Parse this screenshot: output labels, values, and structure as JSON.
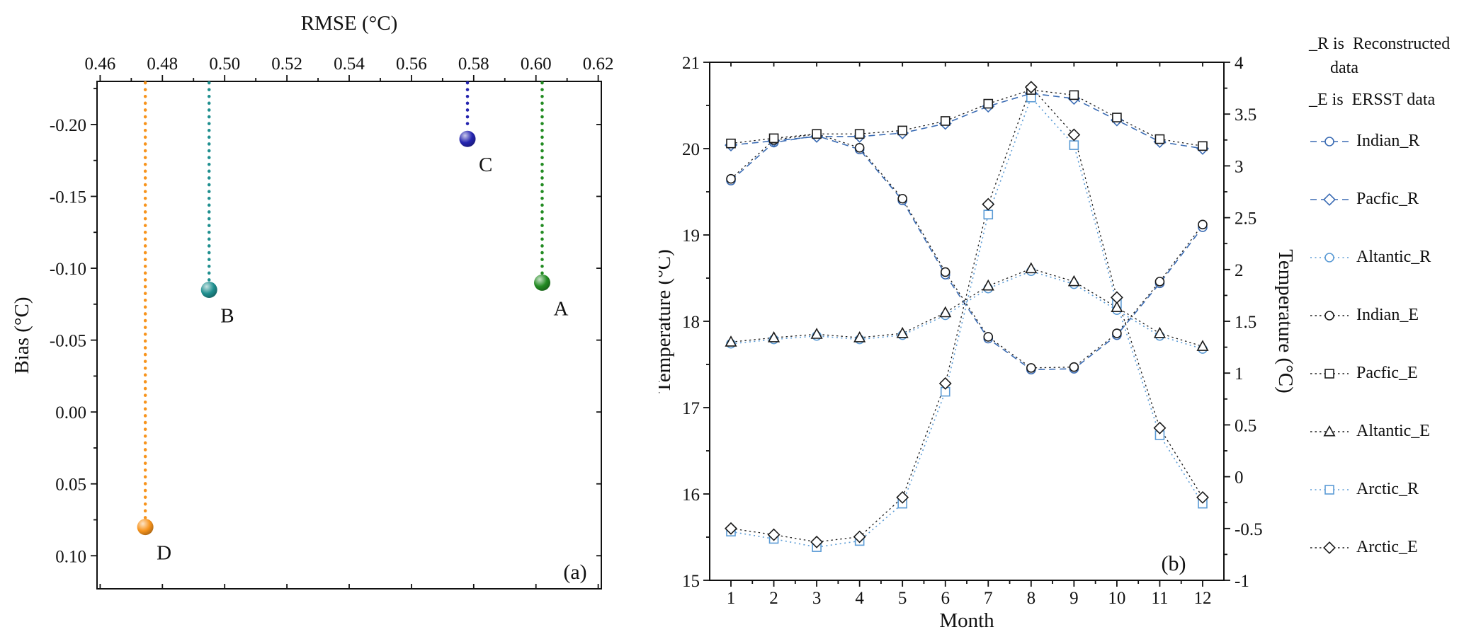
{
  "legend": {
    "note_r": "_R is  Reconstructed data",
    "note_e": "_E is  ERSST data"
  },
  "chart_data": [
    {
      "type": "scatter",
      "panel_label": "(a)",
      "xlabel": "RMSE (°C)",
      "ylabel": "Bias (°C)",
      "x_axis_position": "top",
      "y_axis_inverted": true,
      "grid": false,
      "xlim": [
        0.459,
        0.621
      ],
      "ylim_top_to_bottom": [
        -0.23,
        0.123
      ],
      "x_ticks": [
        0.46,
        0.48,
        0.5,
        0.52,
        0.54,
        0.56,
        0.58,
        0.6,
        0.62
      ],
      "x_tick_labels": [
        "0.46",
        "0.48",
        "0.50",
        "0.52",
        "0.54",
        "0.56",
        "0.58",
        "0.60",
        "0.62"
      ],
      "y_ticks": [
        -0.2,
        -0.15,
        -0.1,
        -0.05,
        0.0,
        0.05,
        0.1
      ],
      "y_tick_labels": [
        "-0.20",
        "-0.15",
        "-0.10",
        "-0.05",
        "0.00",
        "0.05",
        "0.10"
      ],
      "points": [
        {
          "label": "A",
          "rmse": 0.602,
          "bias": -0.09,
          "color": "#228b22"
        },
        {
          "label": "B",
          "rmse": 0.495,
          "bias": -0.085,
          "color": "#1f8f8f"
        },
        {
          "label": "C",
          "rmse": 0.578,
          "bias": -0.19,
          "color": "#2525b0"
        },
        {
          "label": "D",
          "rmse": 0.4745,
          "bias": 0.08,
          "color": "#f7941d"
        }
      ]
    },
    {
      "type": "line",
      "panel_label": "(b)",
      "xlabel": "Month",
      "ylabel_left": "Temperature (°C)",
      "ylabel_right": "Temperature (°C)",
      "grid": false,
      "legend_position": "right",
      "x": [
        1,
        2,
        3,
        4,
        5,
        6,
        7,
        8,
        9,
        10,
        11,
        12
      ],
      "ylim_left": [
        15,
        21
      ],
      "ylim_right": [
        -1,
        4
      ],
      "left_ticks": [
        15,
        16,
        17,
        18,
        19,
        20,
        21
      ],
      "left_tick_labels": [
        "15",
        "16",
        "17",
        "18",
        "19",
        "20",
        "21"
      ],
      "right_ticks": [
        -1,
        -0.5,
        0,
        0.5,
        1,
        1.5,
        2,
        2.5,
        3,
        3.5,
        4
      ],
      "right_tick_labels": [
        "-1",
        "-0.5",
        "0",
        "0.5",
        "1",
        "1.5",
        "2",
        "2.5",
        "3",
        "3.5",
        "4"
      ],
      "series": [
        {
          "name": "Indian_R",
          "axis": "left",
          "marker": "circle",
          "color": "#3b6cb4",
          "dash": "9 6",
          "values": [
            19.63,
            20.07,
            20.15,
            19.99,
            19.4,
            18.54,
            17.8,
            17.44,
            17.45,
            17.84,
            18.44,
            19.09
          ]
        },
        {
          "name": "Pacfic_R",
          "axis": "left",
          "marker": "diamond",
          "color": "#3b6cb4",
          "dash": "9 6",
          "values": [
            20.04,
            20.09,
            20.14,
            20.14,
            20.18,
            20.29,
            20.49,
            20.64,
            20.58,
            20.33,
            20.08,
            20.0
          ]
        },
        {
          "name": "Altantic_R",
          "axis": "left",
          "marker": "circle",
          "color": "#5b9bd5",
          "dash": "2 4.5",
          "values": [
            17.74,
            17.79,
            17.83,
            17.79,
            17.84,
            18.07,
            18.38,
            18.58,
            18.43,
            18.13,
            17.83,
            17.68
          ]
        },
        {
          "name": "Indian_E",
          "axis": "left",
          "marker": "circle",
          "color": "#1a1a1a",
          "dash": "2.5 4",
          "values": [
            19.65,
            20.1,
            20.17,
            20.01,
            19.42,
            18.57,
            17.82,
            17.46,
            17.47,
            17.86,
            18.46,
            19.12
          ]
        },
        {
          "name": "Pacfic_E",
          "axis": "left",
          "marker": "square",
          "color": "#1a1a1a",
          "dash": "2.5 4",
          "values": [
            20.06,
            20.12,
            20.17,
            20.17,
            20.21,
            20.32,
            20.52,
            20.68,
            20.62,
            20.36,
            20.11,
            20.03
          ]
        },
        {
          "name": "Altantic_E",
          "axis": "left",
          "marker": "triangle",
          "color": "#1a1a1a",
          "dash": "2.5 4",
          "values": [
            17.76,
            17.81,
            17.85,
            17.81,
            17.86,
            18.1,
            18.41,
            18.61,
            18.46,
            18.16,
            17.86,
            17.71
          ]
        },
        {
          "name": "Arctic_R",
          "axis": "right",
          "marker": "square",
          "color": "#5b9bd5",
          "dash": "2 4.5",
          "values": [
            -0.53,
            -0.6,
            -0.68,
            -0.62,
            -0.26,
            0.82,
            2.53,
            3.66,
            3.2,
            1.67,
            0.4,
            -0.26
          ]
        },
        {
          "name": "Arctic_E",
          "axis": "right",
          "marker": "diamond",
          "color": "#1a1a1a",
          "dash": "2.5 4",
          "values": [
            -0.5,
            -0.56,
            -0.63,
            -0.58,
            -0.2,
            0.9,
            2.63,
            3.76,
            3.3,
            1.73,
            0.47,
            -0.2
          ]
        }
      ]
    }
  ]
}
